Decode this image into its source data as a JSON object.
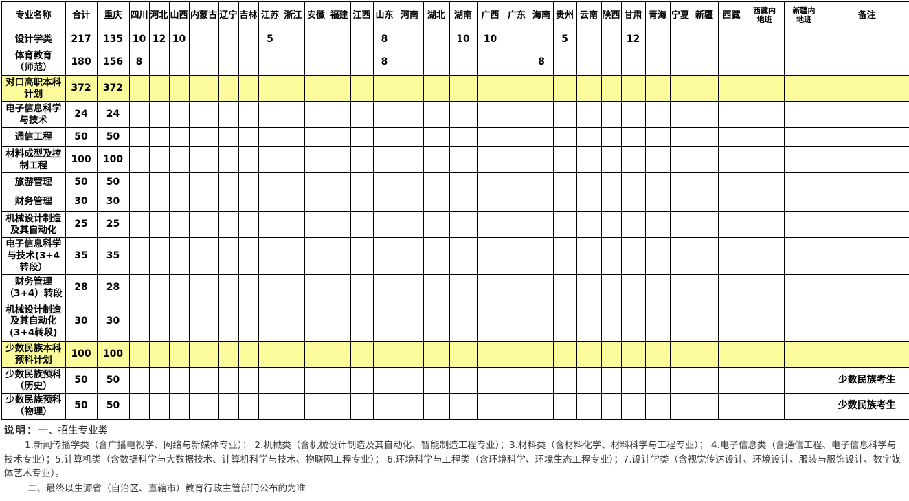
{
  "table": {
    "highlight_color": "#fbfb9b",
    "columns": [
      "专业名称",
      "合计",
      "重庆",
      "四川",
      "河北",
      "山西",
      "内蒙古",
      "辽宁",
      "吉林",
      "江苏",
      "浙江",
      "安徽",
      "福建",
      "江西",
      "山东",
      "河南",
      "湖北",
      "湖南",
      "广西",
      "广东",
      "海南",
      "贵州",
      "云南",
      "陕西",
      "甘肃",
      "青海",
      "宁夏",
      "新疆",
      "西藏",
      "西藏内\n地班",
      "新疆内\n地班",
      "备注"
    ],
    "rows": [
      {
        "label": "设计学类",
        "highlight": false,
        "cells": [
          "217",
          "135",
          "10",
          "12",
          "10",
          "",
          "",
          "",
          "5",
          "",
          "",
          "",
          "",
          "8",
          "",
          "",
          "10",
          "10",
          "",
          "",
          "5",
          "",
          "",
          "12",
          "",
          "",
          "",
          "",
          "",
          "",
          ""
        ]
      },
      {
        "label": "体育教育\n（师范）",
        "highlight": false,
        "cells": [
          "180",
          "156",
          "8",
          "",
          "",
          "",
          "",
          "",
          "",
          "",
          "",
          "",
          "",
          "8",
          "",
          "",
          "",
          "",
          "",
          "8",
          "",
          "",
          "",
          "",
          "",
          "",
          "",
          "",
          "",
          "",
          ""
        ]
      },
      {
        "label": "对口高职本科\n计划",
        "highlight": true,
        "cells": [
          "372",
          "372",
          "",
          "",
          "",
          "",
          "",
          "",
          "",
          "",
          "",
          "",
          "",
          "",
          "",
          "",
          "",
          "",
          "",
          "",
          "",
          "",
          "",
          "",
          "",
          "",
          "",
          "",
          "",
          "",
          ""
        ]
      },
      {
        "label": "电子信息科学\n与技术",
        "highlight": false,
        "cells": [
          "24",
          "24",
          "",
          "",
          "",
          "",
          "",
          "",
          "",
          "",
          "",
          "",
          "",
          "",
          "",
          "",
          "",
          "",
          "",
          "",
          "",
          "",
          "",
          "",
          "",
          "",
          "",
          "",
          "",
          "",
          ""
        ]
      },
      {
        "label": "通信工程",
        "highlight": false,
        "cells": [
          "50",
          "50",
          "",
          "",
          "",
          "",
          "",
          "",
          "",
          "",
          "",
          "",
          "",
          "",
          "",
          "",
          "",
          "",
          "",
          "",
          "",
          "",
          "",
          "",
          "",
          "",
          "",
          "",
          "",
          "",
          ""
        ]
      },
      {
        "label": "材料成型及控\n制工程",
        "highlight": false,
        "cells": [
          "100",
          "100",
          "",
          "",
          "",
          "",
          "",
          "",
          "",
          "",
          "",
          "",
          "",
          "",
          "",
          "",
          "",
          "",
          "",
          "",
          "",
          "",
          "",
          "",
          "",
          "",
          "",
          "",
          "",
          "",
          ""
        ]
      },
      {
        "label": "旅游管理",
        "highlight": false,
        "cells": [
          "50",
          "50",
          "",
          "",
          "",
          "",
          "",
          "",
          "",
          "",
          "",
          "",
          "",
          "",
          "",
          "",
          "",
          "",
          "",
          "",
          "",
          "",
          "",
          "",
          "",
          "",
          "",
          "",
          "",
          "",
          ""
        ]
      },
      {
        "label": "财务管理",
        "highlight": false,
        "cells": [
          "30",
          "30",
          "",
          "",
          "",
          "",
          "",
          "",
          "",
          "",
          "",
          "",
          "",
          "",
          "",
          "",
          "",
          "",
          "",
          "",
          "",
          "",
          "",
          "",
          "",
          "",
          "",
          "",
          "",
          "",
          ""
        ]
      },
      {
        "label": "机械设计制造\n及其自动化",
        "highlight": false,
        "cells": [
          "25",
          "25",
          "",
          "",
          "",
          "",
          "",
          "",
          "",
          "",
          "",
          "",
          "",
          "",
          "",
          "",
          "",
          "",
          "",
          "",
          "",
          "",
          "",
          "",
          "",
          "",
          "",
          "",
          "",
          "",
          ""
        ]
      },
      {
        "label": "电子信息科学\n与技术(3+4\n转段）",
        "highlight": false,
        "cells": [
          "35",
          "35",
          "",
          "",
          "",
          "",
          "",
          "",
          "",
          "",
          "",
          "",
          "",
          "",
          "",
          "",
          "",
          "",
          "",
          "",
          "",
          "",
          "",
          "",
          "",
          "",
          "",
          "",
          "",
          "",
          ""
        ]
      },
      {
        "label": "财务管理\n（3+4）转段",
        "highlight": false,
        "cells": [
          "28",
          "28",
          "",
          "",
          "",
          "",
          "",
          "",
          "",
          "",
          "",
          "",
          "",
          "",
          "",
          "",
          "",
          "",
          "",
          "",
          "",
          "",
          "",
          "",
          "",
          "",
          "",
          "",
          "",
          "",
          ""
        ]
      },
      {
        "label": "机械设计制造\n及其自动化\n(3+4转段)",
        "highlight": false,
        "cells": [
          "30",
          "30",
          "",
          "",
          "",
          "",
          "",
          "",
          "",
          "",
          "",
          "",
          "",
          "",
          "",
          "",
          "",
          "",
          "",
          "",
          "",
          "",
          "",
          "",
          "",
          "",
          "",
          "",
          "",
          "",
          ""
        ]
      },
      {
        "label": "少数民族本科\n预科计划",
        "highlight": true,
        "cells": [
          "100",
          "100",
          "",
          "",
          "",
          "",
          "",
          "",
          "",
          "",
          "",
          "",
          "",
          "",
          "",
          "",
          "",
          "",
          "",
          "",
          "",
          "",
          "",
          "",
          "",
          "",
          "",
          "",
          "",
          "",
          ""
        ]
      },
      {
        "label": "少数民族预科\n（历史）",
        "highlight": false,
        "cells": [
          "50",
          "50",
          "",
          "",
          "",
          "",
          "",
          "",
          "",
          "",
          "",
          "",
          "",
          "",
          "",
          "",
          "",
          "",
          "",
          "",
          "",
          "",
          "",
          "",
          "",
          "",
          "",
          "",
          "",
          "",
          "少数民族考生"
        ]
      },
      {
        "label": "少数民族预科\n（物理）",
        "highlight": false,
        "cells": [
          "50",
          "50",
          "",
          "",
          "",
          "",
          "",
          "",
          "",
          "",
          "",
          "",
          "",
          "",
          "",
          "",
          "",
          "",
          "",
          "",
          "",
          "",
          "",
          "",
          "",
          "",
          "",
          "",
          "",
          "",
          "少数民族考生"
        ]
      }
    ]
  },
  "notes": {
    "heading_bold": "说明：",
    "heading_rest": "一、招生专业类",
    "item1": "1.新闻传播学类（含广播电视学、网络与新媒体专业）； 2.机械类（含机械设计制造及其自动化、智能制造工程专业）；3.材料类（含材料化学、材料科学与工程专业）； 4.电子信息类（含通信工程、电子信息科学与技术专业）；5.计算机类（含数据科学与大数据技术、计算机科学与技术、物联网工程专业）； 6.环境科学与工程类（含环境科学、环境生态工程专业）；7.设计学类（含视觉传达设计、环境设计、服装与服饰设计、数字媒体艺术专业）。",
    "item2": "二、最终以生源省（自治区、直辖市）教育行政主管部门公布的为准"
  }
}
